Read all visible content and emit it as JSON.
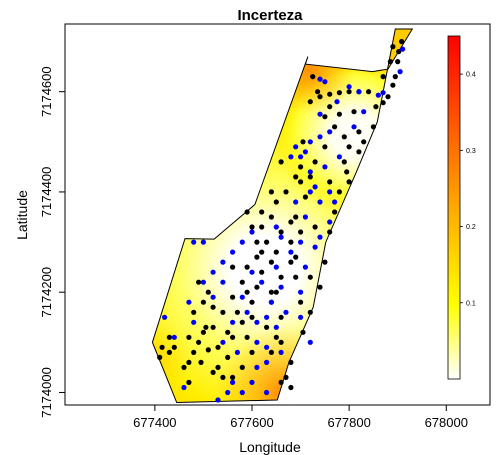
{
  "chart_data": {
    "type": "scatter",
    "title": "Incerteza",
    "xlabel": "Longitude",
    "ylabel": "Latitude",
    "xlim": [
      677215,
      678090
    ],
    "ylim": [
      7173975,
      7174735
    ],
    "x_ticks": [
      677400,
      677600,
      677800,
      678000
    ],
    "y_ticks": [
      7174000,
      7174200,
      7174400,
      7174600
    ],
    "x_tick_labels": [
      "677400",
      "677600",
      "677800",
      "678000"
    ],
    "y_tick_labels": [
      "7174000",
      "7174200",
      "7174400",
      "7174600"
    ],
    "colorbar": {
      "range": [
        0,
        0.45
      ],
      "ticks": [
        0.1,
        0.2,
        0.3,
        0.4
      ],
      "tick_labels": [
        "0.1",
        "0.2",
        "0.3",
        "0.4"
      ],
      "colors": [
        "#ffffff",
        "#ffff00",
        "#ff8c00",
        "#ff0000"
      ]
    },
    "region_boundary": [
      [
        677715,
        7174670
      ],
      [
        677710,
        7174655
      ],
      [
        677848,
        7174640
      ],
      [
        677880,
        7174645
      ],
      [
        677930,
        7174725
      ],
      [
        677895,
        7174725
      ],
      [
        677858,
        7174540
      ],
      [
        677815,
        7174440
      ],
      [
        677752,
        7174300
      ],
      [
        677726,
        7174170
      ],
      [
        677676,
        7174060
      ],
      [
        677652,
        7173985
      ],
      [
        677445,
        7173980
      ],
      [
        677395,
        7174100
      ],
      [
        677462,
        7174307
      ],
      [
        677522,
        7174306
      ],
      [
        677606,
        7174375
      ]
    ],
    "series": [
      {
        "color": "#000000",
        "points": [
          [
            677908,
            7174700
          ],
          [
            677902,
            7174680
          ],
          [
            677900,
            7174660
          ],
          [
            677895,
            7174630
          ],
          [
            677890,
            7174613
          ],
          [
            677880,
            7174590
          ],
          [
            677870,
            7174578
          ],
          [
            677855,
            7174570
          ],
          [
            677840,
            7174600
          ],
          [
            677820,
            7174600
          ],
          [
            677800,
            7174600
          ],
          [
            677780,
            7174598
          ],
          [
            677760,
            7174595
          ],
          [
            677740,
            7174590
          ],
          [
            677720,
            7174580
          ],
          [
            677760,
            7174570
          ],
          [
            677780,
            7174555
          ],
          [
            677790,
            7174510
          ],
          [
            677800,
            7174490
          ],
          [
            677770,
            7174530
          ],
          [
            677750,
            7174490
          ],
          [
            677730,
            7174460
          ],
          [
            677720,
            7174430
          ],
          [
            677710,
            7174390
          ],
          [
            677690,
            7174350
          ],
          [
            677680,
            7174340
          ],
          [
            677680,
            7174300
          ],
          [
            677680,
            7174260
          ],
          [
            677660,
            7174230
          ],
          [
            677650,
            7174200
          ],
          [
            677640,
            7174180
          ],
          [
            677660,
            7174150
          ],
          [
            677650,
            7174110
          ],
          [
            677640,
            7174080
          ],
          [
            677660,
            7174100
          ],
          [
            677670,
            7174030
          ],
          [
            677700,
            7174420
          ],
          [
            677705,
            7174500
          ],
          [
            677660,
            7174460
          ],
          [
            677640,
            7174400
          ],
          [
            677620,
            7174360
          ],
          [
            677620,
            7174330
          ],
          [
            677610,
            7174300
          ],
          [
            677610,
            7174270
          ],
          [
            677620,
            7174240
          ],
          [
            677610,
            7174210
          ],
          [
            677600,
            7174180
          ],
          [
            677580,
            7174140
          ],
          [
            677560,
            7174110
          ],
          [
            677550,
            7174070
          ],
          [
            677530,
            7174050
          ],
          [
            677520,
            7174040
          ],
          [
            677560,
            7174250
          ],
          [
            677580,
            7174220
          ],
          [
            677590,
            7174200
          ],
          [
            677560,
            7174190
          ],
          [
            677540,
            7174160
          ],
          [
            677520,
            7174130
          ],
          [
            677500,
            7174120
          ],
          [
            677490,
            7174100
          ],
          [
            677480,
            7174080
          ],
          [
            677470,
            7174060
          ],
          [
            677470,
            7174020
          ],
          [
            677440,
            7174090
          ],
          [
            677430,
            7174080
          ],
          [
            677410,
            7174070
          ],
          [
            677495,
            7174060
          ],
          [
            677505,
            7174130
          ],
          [
            677510,
            7174200
          ],
          [
            677520,
            7174170
          ],
          [
            677500,
            7174180
          ],
          [
            677490,
            7174220
          ],
          [
            677480,
            7174160
          ],
          [
            677470,
            7174110
          ],
          [
            677510,
            7174085
          ],
          [
            677530,
            7174090
          ],
          [
            677550,
            7174120
          ],
          [
            677570,
            7174160
          ],
          [
            677590,
            7174110
          ],
          [
            677600,
            7174150
          ],
          [
            677630,
            7174130
          ],
          [
            677640,
            7174200
          ],
          [
            677650,
            7174280
          ],
          [
            677660,
            7174320
          ],
          [
            677690,
            7174270
          ],
          [
            677720,
            7174230
          ],
          [
            677740,
            7174210
          ],
          [
            677750,
            7174260
          ],
          [
            677760,
            7174320
          ],
          [
            677770,
            7174360
          ],
          [
            677780,
            7174400
          ],
          [
            677795,
            7174440
          ],
          [
            677800,
            7174420
          ],
          [
            677760,
            7174420
          ],
          [
            677730,
            7174330
          ],
          [
            677700,
            7174320
          ],
          [
            677690,
            7174230
          ],
          [
            677700,
            7174180
          ],
          [
            677720,
            7174160
          ],
          [
            677705,
            7174120
          ],
          [
            677680,
            7174060
          ],
          [
            677680,
            7174010
          ],
          [
            677660,
            7174020
          ],
          [
            677600,
            7174080
          ],
          [
            677580,
            7174050
          ],
          [
            677560,
            7174030
          ],
          [
            677540,
            7174030
          ],
          [
            677460,
            7174050
          ],
          [
            677430,
            7174110
          ],
          [
            677415,
            7174090
          ],
          [
            677790,
            7174460
          ],
          [
            677820,
            7174480
          ],
          [
            677830,
            7174500
          ],
          [
            677850,
            7174530
          ],
          [
            677820,
            7174520
          ],
          [
            677810,
            7174560
          ],
          [
            677750,
            7174550
          ],
          [
            677725,
            7174630
          ],
          [
            677735,
            7174600
          ],
          [
            677870,
            7174630
          ],
          [
            677885,
            7174660
          ],
          [
            677890,
            7174690
          ],
          [
            677700,
            7174450
          ],
          [
            677690,
            7174430
          ],
          [
            677670,
            7174400
          ],
          [
            677650,
            7174380
          ],
          [
            677640,
            7174350
          ],
          [
            677630,
            7174300
          ],
          [
            677620,
            7174280
          ],
          [
            677640,
            7174260
          ],
          [
            677590,
            7174250
          ],
          [
            677600,
            7174330
          ],
          [
            677590,
            7174360
          ]
        ]
      },
      {
        "color": "#0000ff",
        "points": [
          [
            677910,
            7174685
          ],
          [
            677905,
            7174640
          ],
          [
            677870,
            7174598
          ],
          [
            677860,
            7174593
          ],
          [
            677800,
            7174610
          ],
          [
            677750,
            7174620
          ],
          [
            677740,
            7174625
          ],
          [
            677775,
            7174580
          ],
          [
            677740,
            7174555
          ],
          [
            677760,
            7174520
          ],
          [
            677740,
            7174510
          ],
          [
            677720,
            7174500
          ],
          [
            677710,
            7174480
          ],
          [
            677700,
            7174470
          ],
          [
            677690,
            7174490
          ],
          [
            677680,
            7174470
          ],
          [
            677720,
            7174440
          ],
          [
            677690,
            7174380
          ],
          [
            677660,
            7174310
          ],
          [
            677650,
            7174250
          ],
          [
            677640,
            7174180
          ],
          [
            677630,
            7174150
          ],
          [
            677630,
            7174090
          ],
          [
            677630,
            7174060
          ],
          [
            677610,
            7174050
          ],
          [
            677600,
            7174020
          ],
          [
            677580,
            7174000
          ],
          [
            677560,
            7174020
          ],
          [
            677550,
            7174000
          ],
          [
            677530,
            7173985
          ],
          [
            677510,
            7173970
          ],
          [
            677460,
            7174010
          ],
          [
            677440,
            7174110
          ],
          [
            677420,
            7174150
          ],
          [
            677480,
            7174140
          ],
          [
            677470,
            7174180
          ],
          [
            677500,
            7174220
          ],
          [
            677520,
            7174240
          ],
          [
            677540,
            7174260
          ],
          [
            677560,
            7174280
          ],
          [
            677500,
            7174300
          ],
          [
            677480,
            7174300
          ],
          [
            677580,
            7174300
          ],
          [
            677600,
            7174320
          ],
          [
            677580,
            7174190
          ],
          [
            677590,
            7174160
          ],
          [
            677560,
            7174140
          ],
          [
            677540,
            7174100
          ],
          [
            677570,
            7174080
          ],
          [
            677610,
            7174100
          ],
          [
            677650,
            7174130
          ],
          [
            677670,
            7174160
          ],
          [
            677700,
            7174200
          ],
          [
            677710,
            7174250
          ],
          [
            677730,
            7174290
          ],
          [
            677740,
            7174310
          ],
          [
            677760,
            7174340
          ],
          [
            677770,
            7174380
          ],
          [
            677760,
            7174400
          ],
          [
            677740,
            7174380
          ],
          [
            677710,
            7174350
          ],
          [
            677700,
            7174300
          ],
          [
            677680,
            7174280
          ],
          [
            677660,
            7174210
          ],
          [
            677720,
            7174400
          ],
          [
            677750,
            7174450
          ],
          [
            677780,
            7174470
          ],
          [
            677810,
            7174530
          ],
          [
            677830,
            7174560
          ],
          [
            677820,
            7174600
          ],
          [
            677730,
            7174410
          ],
          [
            677650,
            7174330
          ],
          [
            677620,
            7174220
          ],
          [
            677600,
            7174240
          ],
          [
            677520,
            7174190
          ],
          [
            677540,
            7174220
          ],
          [
            677700,
            7174150
          ],
          [
            677720,
            7174100
          ],
          [
            677660,
            7174080
          ],
          [
            677680,
            7173970
          ],
          [
            677630,
            7174000
          ],
          [
            677610,
            7174140
          ]
        ]
      }
    ]
  }
}
